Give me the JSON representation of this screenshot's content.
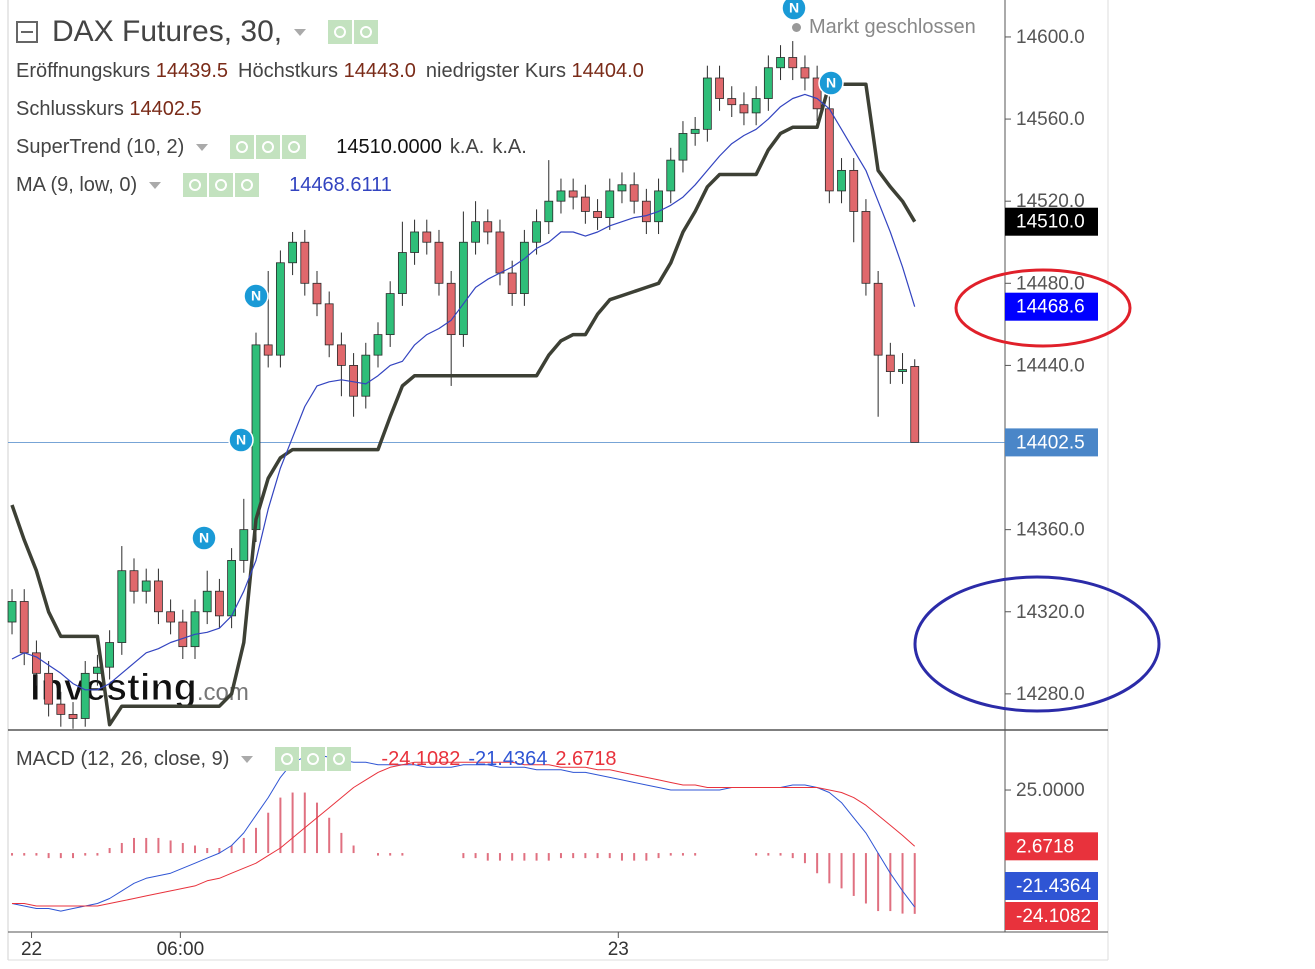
{
  "chart_data": [
    {
      "type": "candlestick",
      "title": "DAX Futures, 30,",
      "status": "Markt geschlossen",
      "ohlc_legend": [
        {
          "label": "Eröffnungskurs",
          "value": "14439.5"
        },
        {
          "label": "Höchstkurs",
          "value": "14443.0"
        },
        {
          "label": "niedrigster Kurs",
          "value": "14404.0"
        },
        {
          "label": "Schlusskurs",
          "value": "14402.5"
        }
      ],
      "up_color": "#2fbe79",
      "down_color": "#e0686c",
      "outline_color": "#2b2b2b",
      "open": [
        14315,
        14325,
        14300,
        14290,
        14275,
        14270,
        14268,
        14290,
        14293,
        14305,
        14340,
        14330,
        14335,
        14320,
        14315,
        14303,
        14320,
        14330,
        14318,
        14345,
        14360,
        14450,
        14445,
        14490,
        14500,
        14480,
        14470,
        14450,
        14440,
        14425,
        14445,
        14455,
        14475,
        14495,
        14505,
        14500,
        14480,
        14455,
        14500,
        14510,
        14505,
        14485,
        14475,
        14500,
        14510,
        14520,
        14525,
        14522,
        14515,
        14512,
        14525,
        14528,
        14520,
        14510,
        14525,
        14540,
        14553,
        14555,
        14580,
        14570,
        14567,
        14563,
        14570,
        14585,
        14590,
        14585,
        14580,
        14565,
        14525,
        14535,
        14515,
        14480,
        14445,
        14437,
        14439.5
      ],
      "high": [
        14331,
        14331,
        14306,
        14296,
        14281,
        14276,
        14296,
        14299,
        14311,
        14352,
        14346,
        14341,
        14341,
        14326,
        14321,
        14326,
        14340,
        14336,
        14351,
        14375,
        14456,
        14486,
        14496,
        14505,
        14506,
        14486,
        14476,
        14456,
        14446,
        14451,
        14461,
        14481,
        14510,
        14511,
        14511,
        14506,
        14486,
        14515,
        14520,
        14516,
        14511,
        14491,
        14506,
        14516,
        14540,
        14531,
        14531,
        14528,
        14521,
        14531,
        14534,
        14534,
        14526,
        14531,
        14546,
        14559,
        14561,
        14586,
        14586,
        14576,
        14573,
        14576,
        14591,
        14596,
        14598,
        14591,
        14586,
        14571,
        14541,
        14541,
        14521,
        14486,
        14451,
        14446,
        14443
      ],
      "low": [
        14309,
        14294,
        14284,
        14269,
        14264,
        14263,
        14264,
        14284,
        14287,
        14299,
        14324,
        14324,
        14314,
        14309,
        14297,
        14297,
        14314,
        14312,
        14312,
        14339,
        14354,
        14439,
        14439,
        14484,
        14474,
        14464,
        14444,
        14425,
        14415,
        14419,
        14439,
        14449,
        14469,
        14489,
        14494,
        14474,
        14430,
        14449,
        14494,
        14499,
        14479,
        14469,
        14469,
        14494,
        14504,
        14514,
        14516,
        14509,
        14506,
        14506,
        14519,
        14514,
        14504,
        14504,
        14519,
        14534,
        14547,
        14549,
        14564,
        14561,
        14557,
        14557,
        14564,
        14579,
        14579,
        14574,
        14559,
        14519,
        14519,
        14500,
        14474,
        14415,
        14431,
        14431,
        14404
      ],
      "close": [
        14325,
        14300,
        14290,
        14275,
        14270,
        14268,
        14290,
        14293,
        14305,
        14340,
        14330,
        14335,
        14320,
        14315,
        14303,
        14320,
        14330,
        14318,
        14345,
        14360,
        14450,
        14445,
        14490,
        14500,
        14480,
        14470,
        14450,
        14440,
        14425,
        14445,
        14455,
        14475,
        14495,
        14505,
        14500,
        14480,
        14455,
        14500,
        14510,
        14505,
        14485,
        14475,
        14500,
        14510,
        14520,
        14525,
        14522,
        14515,
        14512,
        14525,
        14528,
        14520,
        14510,
        14525,
        14540,
        14553,
        14555,
        14580,
        14570,
        14567,
        14563,
        14570,
        14585,
        14590,
        14585,
        14580,
        14565,
        14525,
        14535,
        14515,
        14480,
        14445,
        14437,
        14438,
        14402.5
      ],
      "series": [
        {
          "name": "SuperTrend (10, 2)",
          "color": "#3d4035",
          "values": [
            14372,
            14355,
            14340,
            14320,
            14308,
            14308,
            14308,
            14308,
            14265,
            14274,
            14274,
            14274,
            14274,
            14274,
            14274,
            14274,
            14274,
            14274,
            14280,
            14305,
            14365,
            14385,
            14395,
            14399,
            14399,
            14399,
            14399,
            14399,
            14399,
            14399,
            14399,
            14415,
            14430,
            14435,
            14435,
            14435,
            14435,
            14435,
            14435,
            14435,
            14435,
            14435,
            14435,
            14435,
            14445,
            14452,
            14455,
            14455,
            14465,
            14472,
            14474,
            14476,
            14478,
            14480,
            14490,
            14505,
            14515,
            14527,
            14533,
            14533,
            14533,
            14533,
            14545,
            14553,
            14556,
            14556,
            14556,
            14577,
            14577,
            14577,
            14577,
            14535,
            14527,
            14520,
            14510
          ],
          "legend_values": [
            "14510.0000",
            "k.A.",
            "k.A."
          ]
        },
        {
          "name": "MA (9, low, 0)",
          "color": "#3344c0",
          "values": [
            14297,
            14300,
            14298,
            14294,
            14290,
            14285,
            14282,
            14282,
            14285,
            14290,
            14295,
            14300,
            14302,
            14305,
            14307,
            14309,
            14310,
            14312,
            14318,
            14330,
            14345,
            14370,
            14390,
            14405,
            14420,
            14430,
            14432,
            14433,
            14432,
            14431,
            14435,
            14440,
            14442,
            14450,
            14455,
            14458,
            14462,
            14470,
            14478,
            14482,
            14485,
            14488,
            14492,
            14497,
            14500,
            14505,
            14505,
            14503,
            14505,
            14508,
            14510,
            14512,
            14513,
            14515,
            14518,
            14522,
            14528,
            14535,
            14542,
            14548,
            14552,
            14555,
            14560,
            14566,
            14570,
            14572,
            14570,
            14565,
            14555,
            14545,
            14535,
            14520,
            14505,
            14488,
            14468.6111
          ],
          "legend_values": [
            "14468.6111"
          ]
        }
      ],
      "price_tags": [
        {
          "value": 14510,
          "label": "14510.0",
          "color": "#000000"
        },
        {
          "value": 14468.6,
          "label": "14468.6",
          "color": "#0000ff"
        },
        {
          "value": 14402.5,
          "label": "14402.5",
          "color": "#4a86c8"
        }
      ],
      "price_line": true,
      "xlim": [
        -0.33,
        81.4
      ],
      "xticks": [
        {
          "value": 1.6,
          "label": "22"
        },
        {
          "value": 13.8,
          "label": "06:00"
        },
        {
          "value": 49.7,
          "label": "23"
        }
      ],
      "ylim": [
        14262.4,
        14618
      ],
      "yticks": [
        {
          "value": 14280,
          "label": "14280.0"
        },
        {
          "value": 14320,
          "label": "14320.0"
        },
        {
          "value": 14360,
          "label": "14360.0"
        },
        {
          "value": 14400,
          "label": "14400.0"
        },
        {
          "value": 14440,
          "label": "14440.0"
        },
        {
          "value": 14480,
          "label": "14480.0"
        },
        {
          "value": 14520,
          "label": "14520.0"
        },
        {
          "value": 14560,
          "label": "14560.0"
        },
        {
          "value": 14600,
          "label": "14600.0"
        }
      ],
      "watermark": [
        "Investing",
        ".com"
      ],
      "news_marker": "N"
    },
    {
      "type": "macd",
      "title": "MACD (12, 26, close, 9)",
      "xlim": [
        -0.33,
        81.4
      ],
      "ylim": [
        -31.3,
        48.8
      ],
      "yticks": [
        {
          "value": 25,
          "label": "25.0000"
        }
      ],
      "series": [
        {
          "style": "bars",
          "color": "#e8323c",
          "bar_color": "#e07080",
          "value_label": "-24.1082",
          "values": [
            -1,
            -1,
            -1,
            -2,
            -2,
            -2,
            -1,
            -1,
            2,
            4,
            6,
            6,
            6,
            5,
            4,
            3,
            2,
            2,
            3,
            6,
            10,
            16,
            22,
            24,
            24,
            20,
            14,
            8,
            3,
            0,
            -1,
            -1,
            -1,
            0,
            0,
            0,
            0,
            -2,
            -2,
            -3,
            -3,
            -3,
            -3,
            -3,
            -3,
            -2,
            -2,
            -2,
            -2,
            -2,
            -3,
            -3,
            -3,
            -2,
            -1,
            -1,
            -1,
            0,
            0,
            0,
            0,
            -1,
            -1,
            -1,
            -2,
            -4,
            -8,
            -12,
            -14,
            -17,
            -20,
            -23,
            -23,
            -24,
            -24.1082
          ]
        },
        {
          "style": "line",
          "color": "#2f55d4",
          "value_label": "-21.4364",
          "values": [
            -20,
            -21,
            -22,
            -22,
            -23,
            -22,
            -21,
            -20,
            -18,
            -15,
            -12,
            -10,
            -9,
            -8,
            -6,
            -4,
            -2,
            0,
            3,
            8,
            15,
            22,
            30,
            36,
            38,
            39,
            38,
            37,
            36,
            36,
            35,
            35,
            35,
            35,
            34,
            34,
            34,
            35,
            35,
            35,
            34,
            34,
            34,
            33,
            33,
            33,
            32,
            32,
            31,
            30,
            29,
            28,
            27,
            26,
            25,
            25,
            25,
            25,
            25,
            26,
            26,
            26,
            26,
            26,
            27,
            27,
            26,
            24,
            20,
            14,
            8,
            0,
            -8,
            -15,
            -21.4364
          ]
        },
        {
          "style": "line",
          "color": "#e8323c",
          "value_label": "2.6718",
          "values": [
            -20,
            -20,
            -21,
            -21,
            -21,
            -21,
            -21,
            -21,
            -20,
            -19,
            -18,
            -17,
            -16,
            -15,
            -14,
            -13,
            -11,
            -10,
            -8,
            -6,
            -4,
            -1,
            2,
            6,
            10,
            14,
            18,
            22,
            26,
            29,
            32,
            34,
            35,
            36,
            36,
            36,
            36,
            36,
            36,
            36,
            36,
            36,
            35,
            35,
            35,
            34,
            34,
            34,
            33,
            33,
            32,
            31,
            30,
            29,
            28,
            27,
            27,
            26,
            26,
            26,
            26,
            26,
            26,
            26,
            26,
            26,
            26,
            25,
            24,
            22,
            19,
            15,
            11,
            7,
            2.6718
          ]
        }
      ]
    }
  ]
}
